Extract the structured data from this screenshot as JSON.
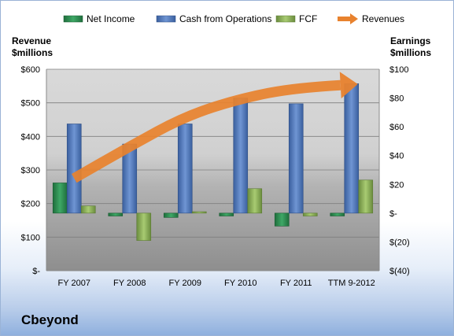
{
  "chart_data": {
    "type": "bar",
    "categories": [
      "FY 2007",
      "FY 2008",
      "FY 2009",
      "FY 2010",
      "FY 2011",
      "TTM 9-2012"
    ],
    "series": [
      {
        "name": "Net Income",
        "axis": "right",
        "color": "#2e8b4f",
        "values": [
          21,
          -2,
          -3,
          -2,
          -9,
          -2
        ]
      },
      {
        "name": "Cash from Operations",
        "axis": "right",
        "color": "#4f79bd",
        "values": [
          62,
          48,
          62,
          80,
          76,
          90
        ]
      },
      {
        "name": "FCF",
        "axis": "right",
        "color": "#8db25a",
        "values": [
          5,
          -19,
          1,
          17,
          -2,
          23
        ]
      },
      {
        "name": "Revenues",
        "axis": "left",
        "type": "arrow",
        "color": "#e8822e",
        "values": [
          275,
          370,
          460,
          513,
          545,
          555
        ]
      }
    ],
    "left_axis": {
      "label_line1": "Revenue",
      "label_line2": "$millions",
      "range": [
        0,
        600
      ],
      "ticks": [
        {
          "value": 600,
          "label": "$600"
        },
        {
          "value": 500,
          "label": "$500"
        },
        {
          "value": 400,
          "label": "$400"
        },
        {
          "value": 300,
          "label": "$300"
        },
        {
          "value": 200,
          "label": "$200"
        },
        {
          "value": 100,
          "label": "$100"
        },
        {
          "value": 0,
          "label": "$-"
        }
      ]
    },
    "right_axis": {
      "label_line1": "Earnings",
      "label_line2": "$millions",
      "range": [
        -40,
        100
      ],
      "ticks": [
        {
          "value": 100,
          "label": "$100"
        },
        {
          "value": 80,
          "label": "$80"
        },
        {
          "value": 60,
          "label": "$60"
        },
        {
          "value": 40,
          "label": "$40"
        },
        {
          "value": 20,
          "label": "$20"
        },
        {
          "value": 0,
          "label": "$-"
        },
        {
          "value": -20,
          "label": "$(20)"
        },
        {
          "value": -40,
          "label": "$(40)"
        }
      ]
    },
    "legend": [
      {
        "label": "Net Income",
        "swatch": "bar",
        "color": "#2e8b4f"
      },
      {
        "label": "Cash from Operations",
        "swatch": "bar",
        "color": "#4f79bd"
      },
      {
        "label": "FCF",
        "swatch": "bar",
        "color": "#8db25a"
      },
      {
        "label": "Revenues",
        "swatch": "arrow",
        "color": "#e8822e"
      }
    ],
    "legend_position": "top",
    "grid": true
  },
  "company": "Cbeyond"
}
